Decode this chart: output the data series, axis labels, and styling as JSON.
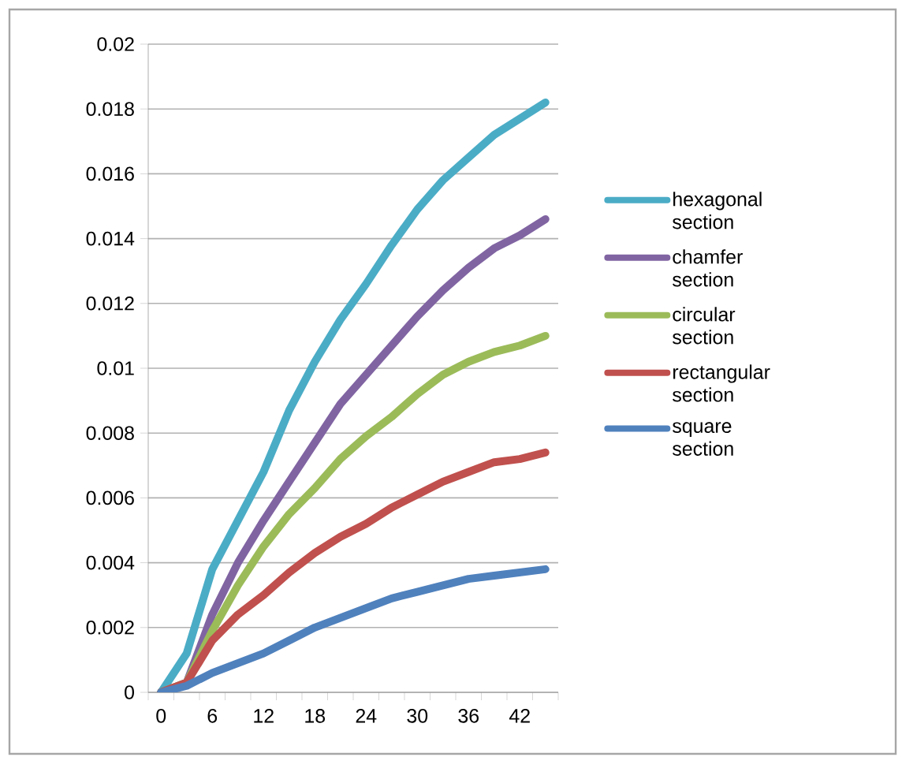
{
  "chart_data": {
    "type": "line",
    "categories": [
      "0",
      null,
      "6",
      null,
      "12",
      null,
      "18",
      null,
      "24",
      null,
      "30",
      null,
      "36",
      null,
      "42",
      null
    ],
    "series": [
      {
        "name": "hexagonal section",
        "color": "#4bacc6",
        "values": [
          0,
          0.0012,
          0.0038,
          0.0053,
          0.0068,
          0.0087,
          0.0102,
          0.0115,
          0.0126,
          0.0138,
          0.0149,
          0.0158,
          0.0165,
          0.0172,
          0.0177,
          0.0182
        ]
      },
      {
        "name": "chamfer section",
        "color": "#8064a2",
        "values": [
          0,
          0.0003,
          0.0024,
          0.004,
          0.0053,
          0.0065,
          0.0077,
          0.0089,
          0.0098,
          0.0107,
          0.0116,
          0.0124,
          0.0131,
          0.0137,
          0.0141,
          0.0146
        ]
      },
      {
        "name": "circular section",
        "color": "#9bbb59",
        "values": [
          0,
          0.0003,
          0.0019,
          0.0033,
          0.0045,
          0.0055,
          0.0063,
          0.0072,
          0.0079,
          0.0085,
          0.0092,
          0.0098,
          0.0102,
          0.0105,
          0.0107,
          0.011
        ]
      },
      {
        "name": "rectangular section",
        "color": "#c0504d",
        "values": [
          0,
          0.0003,
          0.0016,
          0.0024,
          0.003,
          0.0037,
          0.0043,
          0.0048,
          0.0052,
          0.0057,
          0.0061,
          0.0065,
          0.0068,
          0.0071,
          0.0072,
          0.0074
        ]
      },
      {
        "name": "square section",
        "color": "#4f81bd",
        "values": [
          0,
          0.0002,
          0.0006,
          0.0009,
          0.0012,
          0.0016,
          0.002,
          0.0023,
          0.0026,
          0.0029,
          0.0031,
          0.0033,
          0.0035,
          0.0036,
          0.0037,
          0.0038
        ]
      }
    ],
    "ylim": [
      0,
      0.02
    ],
    "yticks": [
      0,
      0.002,
      0.004,
      0.006,
      0.008,
      0.01,
      0.012,
      0.014,
      0.016,
      0.018,
      0.02
    ],
    "grid": "y",
    "legend": "right",
    "marker": "none",
    "line_style": "solid"
  }
}
